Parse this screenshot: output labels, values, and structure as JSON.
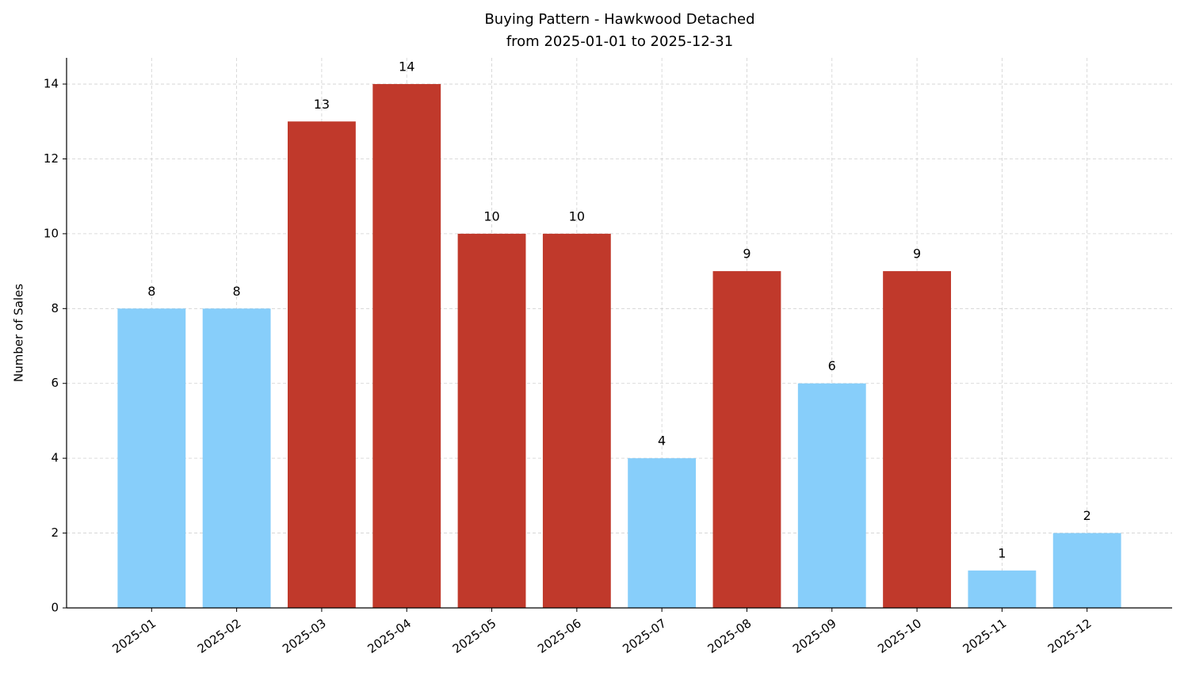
{
  "chart_data": {
    "type": "bar",
    "title": "Buying Pattern - Hawkwood Detached",
    "subtitle": "from 2025-01-01 to 2025-12-31",
    "y_label": "Number of Sales",
    "categories": [
      "2025-01",
      "2025-02",
      "2025-03",
      "2025-04",
      "2025-05",
      "2025-06",
      "2025-07",
      "2025-08",
      "2025-09",
      "2025-10",
      "2025-11",
      "2025-12"
    ],
    "values": [
      8,
      8,
      13,
      14,
      10,
      10,
      4,
      9,
      6,
      9,
      1,
      2
    ],
    "colors": [
      "#87cefa",
      "#87cefa",
      "#c0392b",
      "#c0392b",
      "#c0392b",
      "#c0392b",
      "#87cefa",
      "#c0392b",
      "#87cefa",
      "#c0392b",
      "#87cefa",
      "#87cefa"
    ],
    "ylim": [
      0,
      14.7
    ],
    "yticks": [
      0,
      2,
      4,
      6,
      8,
      10,
      12,
      14
    ],
    "grid": true
  }
}
